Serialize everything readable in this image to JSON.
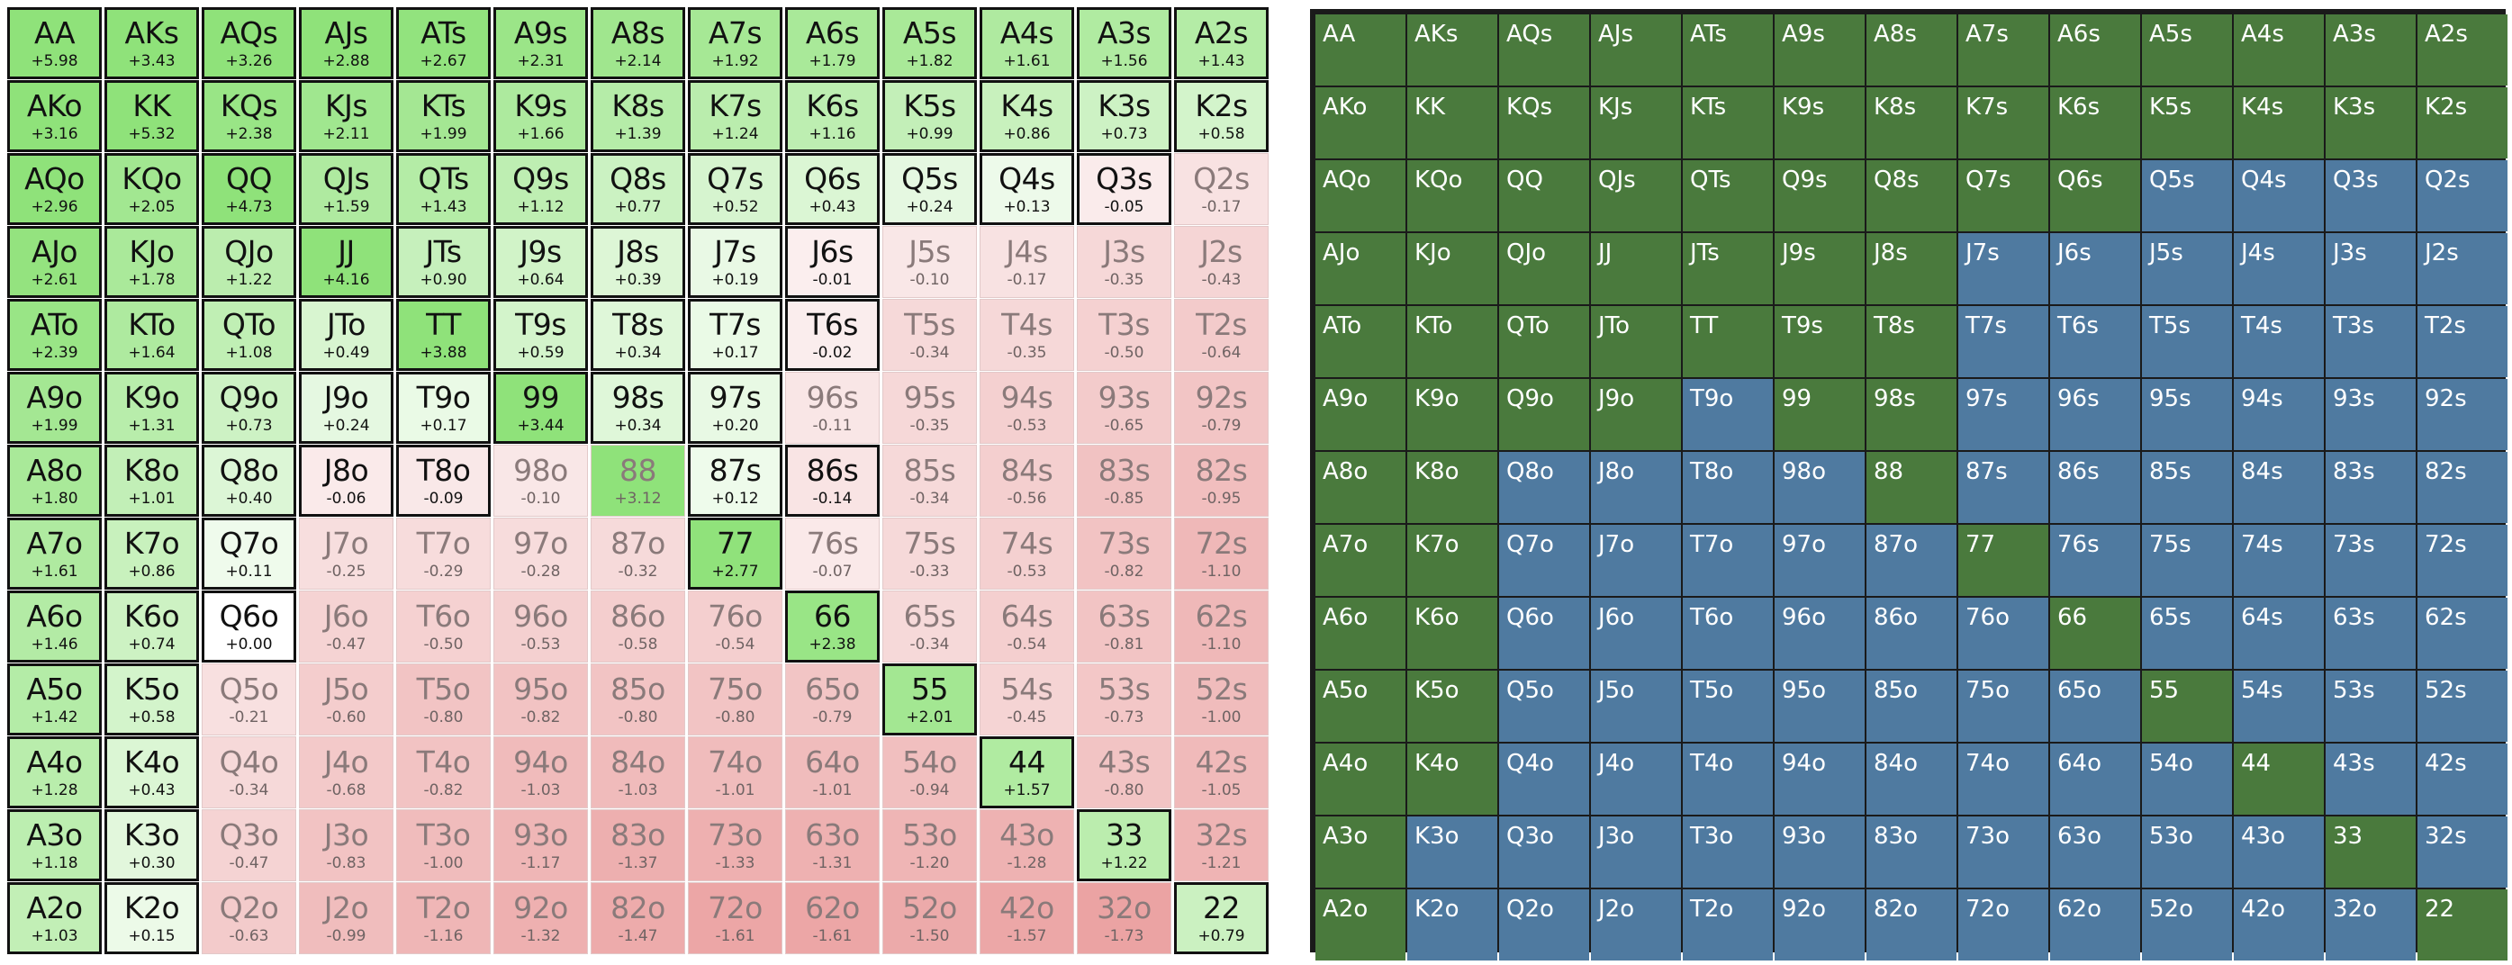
{
  "colors": {
    "raise_green": "#4a7a3d",
    "fold_blue": "#4f7aa0",
    "frame": "#1a1a1a",
    "heat_green_max": "#8fe27a",
    "heat_red_max": "#eba3a3"
  },
  "left_grid": {
    "rows": [
      [
        [
          "AA",
          "+5.98"
        ],
        [
          "AKs",
          "+3.43"
        ],
        [
          "AQs",
          "+3.26"
        ],
        [
          "AJs",
          "+2.88"
        ],
        [
          "ATs",
          "+2.67"
        ],
        [
          "A9s",
          "+2.31"
        ],
        [
          "A8s",
          "+2.14"
        ],
        [
          "A7s",
          "+1.92"
        ],
        [
          "A6s",
          "+1.79"
        ],
        [
          "A5s",
          "+1.82"
        ],
        [
          "A4s",
          "+1.61"
        ],
        [
          "A3s",
          "+1.56"
        ],
        [
          "A2s",
          "+1.43"
        ]
      ],
      [
        [
          "AKo",
          "+3.16"
        ],
        [
          "KK",
          "+5.32"
        ],
        [
          "KQs",
          "+2.38"
        ],
        [
          "KJs",
          "+2.11"
        ],
        [
          "KTs",
          "+1.99"
        ],
        [
          "K9s",
          "+1.66"
        ],
        [
          "K8s",
          "+1.39"
        ],
        [
          "K7s",
          "+1.24"
        ],
        [
          "K6s",
          "+1.16"
        ],
        [
          "K5s",
          "+0.99"
        ],
        [
          "K4s",
          "+0.86"
        ],
        [
          "K3s",
          "+0.73"
        ],
        [
          "K2s",
          "+0.58"
        ]
      ],
      [
        [
          "AQo",
          "+2.96"
        ],
        [
          "KQo",
          "+2.05"
        ],
        [
          "QQ",
          "+4.73"
        ],
        [
          "QJs",
          "+1.59"
        ],
        [
          "QTs",
          "+1.43"
        ],
        [
          "Q9s",
          "+1.12"
        ],
        [
          "Q8s",
          "+0.77"
        ],
        [
          "Q7s",
          "+0.52"
        ],
        [
          "Q6s",
          "+0.43"
        ],
        [
          "Q5s",
          "+0.24"
        ],
        [
          "Q4s",
          "+0.13"
        ],
        [
          "Q3s",
          "-0.05"
        ],
        [
          "Q2s",
          "-0.17"
        ]
      ],
      [
        [
          "AJo",
          "+2.61"
        ],
        [
          "KJo",
          "+1.78"
        ],
        [
          "QJo",
          "+1.22"
        ],
        [
          "JJ",
          "+4.16"
        ],
        [
          "JTs",
          "+0.90"
        ],
        [
          "J9s",
          "+0.64"
        ],
        [
          "J8s",
          "+0.39"
        ],
        [
          "J7s",
          "+0.19"
        ],
        [
          "J6s",
          "-0.01"
        ],
        [
          "J5s",
          "-0.10"
        ],
        [
          "J4s",
          "-0.17"
        ],
        [
          "J3s",
          "-0.35"
        ],
        [
          "J2s",
          "-0.43"
        ]
      ],
      [
        [
          "ATo",
          "+2.39"
        ],
        [
          "KTo",
          "+1.64"
        ],
        [
          "QTo",
          "+1.08"
        ],
        [
          "JTo",
          "+0.49"
        ],
        [
          "TT",
          "+3.88"
        ],
        [
          "T9s",
          "+0.59"
        ],
        [
          "T8s",
          "+0.34"
        ],
        [
          "T7s",
          "+0.17"
        ],
        [
          "T6s",
          "-0.02"
        ],
        [
          "T5s",
          "-0.34"
        ],
        [
          "T4s",
          "-0.35"
        ],
        [
          "T3s",
          "-0.50"
        ],
        [
          "T2s",
          "-0.64"
        ]
      ],
      [
        [
          "A9o",
          "+1.99"
        ],
        [
          "K9o",
          "+1.31"
        ],
        [
          "Q9o",
          "+0.73"
        ],
        [
          "J9o",
          "+0.24"
        ],
        [
          "T9o",
          "+0.17"
        ],
        [
          "99",
          "+3.44"
        ],
        [
          "98s",
          "+0.34"
        ],
        [
          "97s",
          "+0.20"
        ],
        [
          "96s",
          "-0.11"
        ],
        [
          "95s",
          "-0.35"
        ],
        [
          "94s",
          "-0.53"
        ],
        [
          "93s",
          "-0.65"
        ],
        [
          "92s",
          "-0.79"
        ]
      ],
      [
        [
          "A8o",
          "+1.80"
        ],
        [
          "K8o",
          "+1.01"
        ],
        [
          "Q8o",
          "+0.40"
        ],
        [
          "J8o",
          "-0.06"
        ],
        [
          "T8o",
          "-0.09"
        ],
        [
          "98o",
          "-0.10"
        ],
        [
          "88",
          "+3.12"
        ],
        [
          "87s",
          "+0.12"
        ],
        [
          "86s",
          "-0.14"
        ],
        [
          "85s",
          "-0.34"
        ],
        [
          "84s",
          "-0.56"
        ],
        [
          "83s",
          "-0.85"
        ],
        [
          "82s",
          "-0.95"
        ]
      ],
      [
        [
          "A7o",
          "+1.61"
        ],
        [
          "K7o",
          "+0.86"
        ],
        [
          "Q7o",
          "+0.11"
        ],
        [
          "J7o",
          "-0.25"
        ],
        [
          "T7o",
          "-0.29"
        ],
        [
          "97o",
          "-0.28"
        ],
        [
          "87o",
          "-0.32"
        ],
        [
          "77",
          "+2.77"
        ],
        [
          "76s",
          "-0.07"
        ],
        [
          "75s",
          "-0.33"
        ],
        [
          "74s",
          "-0.53"
        ],
        [
          "73s",
          "-0.82"
        ],
        [
          "72s",
          "-1.10"
        ]
      ],
      [
        [
          "A6o",
          "+1.46"
        ],
        [
          "K6o",
          "+0.74"
        ],
        [
          "Q6o",
          "+0.00"
        ],
        [
          "J6o",
          "-0.47"
        ],
        [
          "T6o",
          "-0.50"
        ],
        [
          "96o",
          "-0.53"
        ],
        [
          "86o",
          "-0.58"
        ],
        [
          "76o",
          "-0.54"
        ],
        [
          "66",
          "+2.38"
        ],
        [
          "65s",
          "-0.34"
        ],
        [
          "64s",
          "-0.54"
        ],
        [
          "63s",
          "-0.81"
        ],
        [
          "62s",
          "-1.10"
        ]
      ],
      [
        [
          "A5o",
          "+1.42"
        ],
        [
          "K5o",
          "+0.58"
        ],
        [
          "Q5o",
          "-0.21"
        ],
        [
          "J5o",
          "-0.60"
        ],
        [
          "T5o",
          "-0.80"
        ],
        [
          "95o",
          "-0.82"
        ],
        [
          "85o",
          "-0.80"
        ],
        [
          "75o",
          "-0.80"
        ],
        [
          "65o",
          "-0.79"
        ],
        [
          "55",
          "+2.01"
        ],
        [
          "54s",
          "-0.45"
        ],
        [
          "53s",
          "-0.73"
        ],
        [
          "52s",
          "-1.00"
        ]
      ],
      [
        [
          "A4o",
          "+1.28"
        ],
        [
          "K4o",
          "+0.43"
        ],
        [
          "Q4o",
          "-0.34"
        ],
        [
          "J4o",
          "-0.68"
        ],
        [
          "T4o",
          "-0.82"
        ],
        [
          "94o",
          "-1.03"
        ],
        [
          "84o",
          "-1.03"
        ],
        [
          "74o",
          "-1.01"
        ],
        [
          "64o",
          "-1.01"
        ],
        [
          "54o",
          "-0.94"
        ],
        [
          "44",
          "+1.57"
        ],
        [
          "43s",
          "-0.80"
        ],
        [
          "42s",
          "-1.05"
        ]
      ],
      [
        [
          "A3o",
          "+1.18"
        ],
        [
          "K3o",
          "+0.30"
        ],
        [
          "Q3o",
          "-0.47"
        ],
        [
          "J3o",
          "-0.83"
        ],
        [
          "T3o",
          "-1.00"
        ],
        [
          "93o",
          "-1.17"
        ],
        [
          "83o",
          "-1.37"
        ],
        [
          "73o",
          "-1.33"
        ],
        [
          "63o",
          "-1.31"
        ],
        [
          "53o",
          "-1.20"
        ],
        [
          "43o",
          "-1.28"
        ],
        [
          "33",
          "+1.22"
        ],
        [
          "32s",
          "-1.21"
        ]
      ],
      [
        [
          "A2o",
          "+1.03"
        ],
        [
          "K2o",
          "+0.15"
        ],
        [
          "Q2o",
          "-0.63"
        ],
        [
          "J2o",
          "-0.99"
        ],
        [
          "T2o",
          "-1.16"
        ],
        [
          "92o",
          "-1.32"
        ],
        [
          "82o",
          "-1.47"
        ],
        [
          "72o",
          "-1.61"
        ],
        [
          "62o",
          "-1.61"
        ],
        [
          "52o",
          "-1.50"
        ],
        [
          "42o",
          "-1.57"
        ],
        [
          "32o",
          "-1.73"
        ],
        [
          "22",
          "+0.79"
        ]
      ]
    ],
    "raise_mask": [
      "1111111111111",
      "1111111111111",
      "1111111111110",
      "1111111110000",
      "1111111110000",
      "1111111100000",
      "1111100110000",
      "1110000100000",
      "1110000010000",
      "1100000001000",
      "1100000000100",
      "1100000000010",
      "1100000000001"
    ]
  },
  "right_grid": {
    "green_mask": [
      "1111111111111",
      "1111111111111",
      "1111111110000",
      "1111111000000",
      "1111111000000",
      "1111011000000",
      "1100001000000",
      "1100000100000",
      "1100000010000",
      "1100000001000",
      "1100000000100",
      "1000000000010",
      "1000000000001"
    ]
  }
}
